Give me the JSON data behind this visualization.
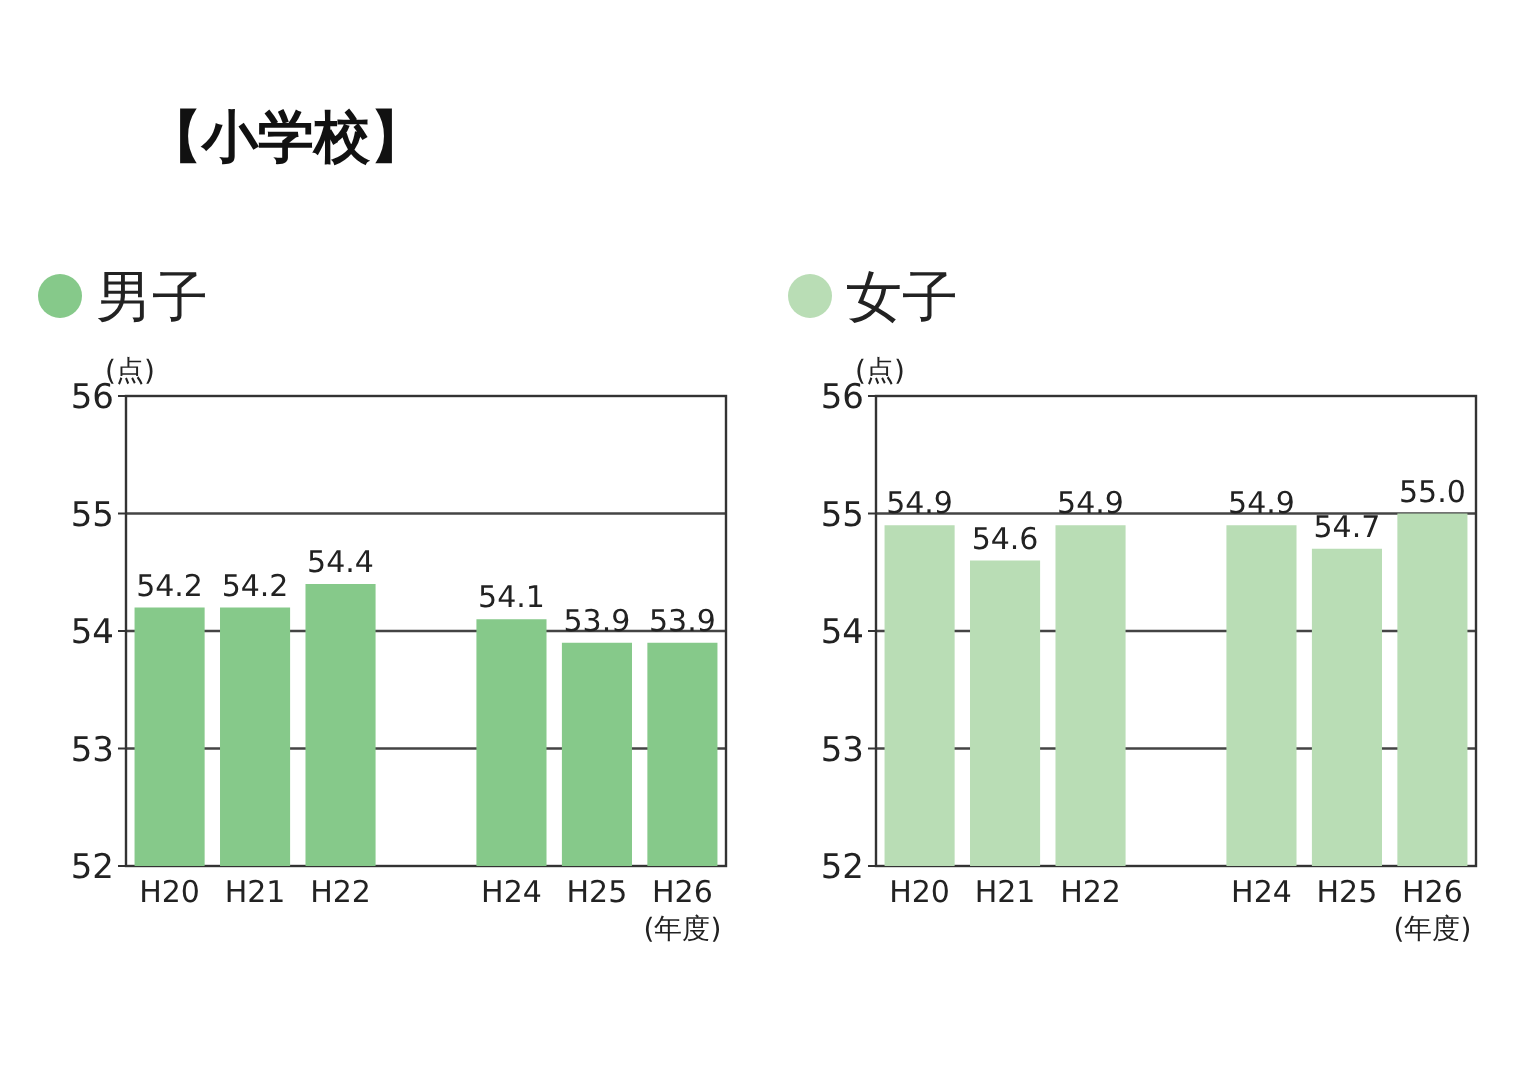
{
  "chart_data": [
    {
      "type": "bar",
      "title": "【小学校】",
      "ylabel": "(点)",
      "xlabel": "(年度)",
      "categories": [
        "H20",
        "H21",
        "H22",
        null,
        "H24",
        "H25",
        "H26"
      ],
      "series": [
        {
          "name": "男子",
          "color": "#86c98a",
          "values": [
            54.2,
            54.2,
            54.4,
            null,
            54.1,
            53.9,
            53.9
          ]
        }
      ],
      "ylim": [
        52,
        56
      ],
      "yticks": [
        52,
        53,
        54,
        55,
        56
      ],
      "grid": "y",
      "legend": "top left",
      "data_labels": true
    },
    {
      "type": "bar",
      "ylabel": "(点)",
      "xlabel": "(年度)",
      "categories": [
        "H20",
        "H21",
        "H22",
        null,
        "H24",
        "H25",
        "H26"
      ],
      "series": [
        {
          "name": "女子",
          "color": "#b9ddb5",
          "values": [
            54.9,
            54.6,
            54.9,
            null,
            54.9,
            54.7,
            55.0
          ],
          "value_labels": [
            "54.9",
            "54.6",
            "54.9",
            null,
            "54.9",
            "54.7",
            "55.0"
          ]
        }
      ],
      "ylim": [
        52,
        56
      ],
      "yticks": [
        52,
        53,
        54,
        55,
        56
      ],
      "grid": "y",
      "legend": "top left"
    }
  ]
}
